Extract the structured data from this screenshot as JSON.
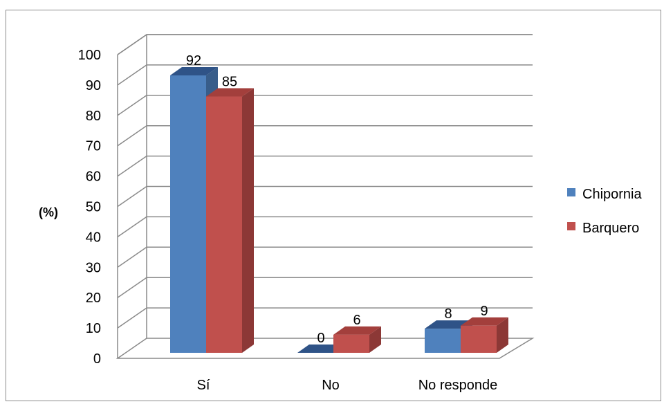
{
  "chart_data": {
    "type": "bar",
    "title": "",
    "xlabel": "",
    "ylabel": "(%)",
    "ylim": [
      0,
      100
    ],
    "yticks": [
      0,
      10,
      20,
      30,
      40,
      50,
      60,
      70,
      80,
      90,
      100
    ],
    "categories": [
      "Sí",
      "No",
      "No responde"
    ],
    "series": [
      {
        "name": "Chipornia",
        "values": [
          92,
          0,
          8
        ],
        "color": "#4f81bd",
        "side_color": "#385d8a",
        "top_color": "#2f5387"
      },
      {
        "name": "Barquero",
        "values": [
          85,
          6,
          9
        ],
        "color": "#c0504d",
        "side_color": "#8c3836",
        "top_color": "#a33f3c"
      }
    ],
    "data_labels": true,
    "grid": true,
    "legend_position": "right",
    "style": "3d-clustered-column"
  }
}
